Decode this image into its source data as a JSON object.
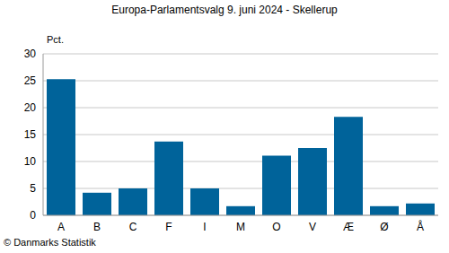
{
  "chart_data": {
    "type": "bar",
    "title": "Europa-Parlamentsvalg 9. juni 2024 - Skellerup",
    "y_label": "Pct.",
    "source": "© Danmarks Statistik",
    "categories": [
      "A",
      "B",
      "C",
      "F",
      "I",
      "M",
      "O",
      "V",
      "Æ",
      "Ø",
      "Å"
    ],
    "values": [
      25.3,
      4.2,
      5.0,
      13.7,
      5.0,
      1.7,
      11.1,
      12.5,
      18.3,
      1.7,
      2.2
    ],
    "color": "#00639a",
    "ylim": [
      0,
      30
    ],
    "yticks": [
      0,
      5,
      10,
      15,
      20,
      25,
      30
    ],
    "grid": true
  }
}
